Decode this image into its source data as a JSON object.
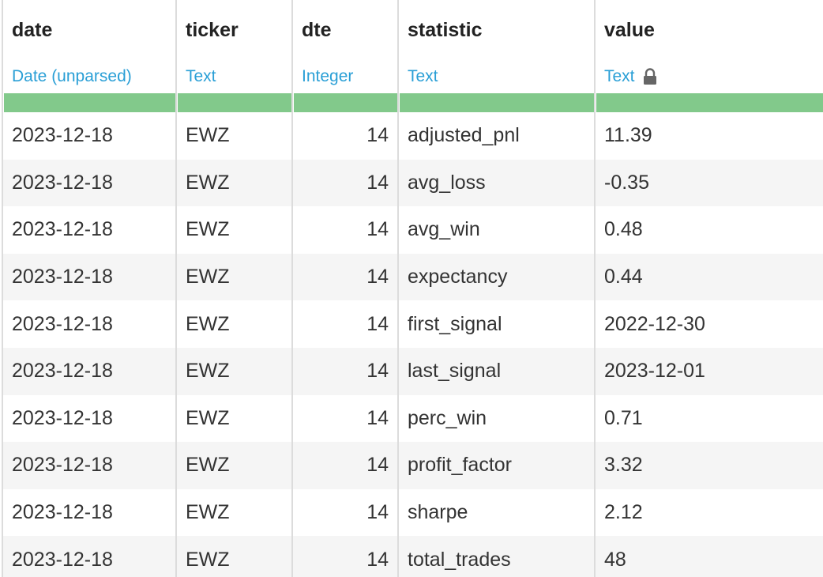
{
  "table": {
    "columns": [
      {
        "name": "date",
        "type": "Date (unparsed)"
      },
      {
        "name": "ticker",
        "type": "Text"
      },
      {
        "name": "dte",
        "type": "Integer"
      },
      {
        "name": "statistic",
        "type": "Text"
      },
      {
        "name": "value",
        "type": "Text"
      }
    ],
    "rows": [
      [
        "2023-12-18",
        "EWZ",
        14,
        "adjusted_pnl",
        "11.39"
      ],
      [
        "2023-12-18",
        "EWZ",
        14,
        "avg_loss",
        "-0.35"
      ],
      [
        "2023-12-18",
        "EWZ",
        14,
        "avg_win",
        "0.48"
      ],
      [
        "2023-12-18",
        "EWZ",
        14,
        "expectancy",
        "0.44"
      ],
      [
        "2023-12-18",
        "EWZ",
        14,
        "first_signal",
        "2022-12-30"
      ],
      [
        "2023-12-18",
        "EWZ",
        14,
        "last_signal",
        "2023-12-01"
      ],
      [
        "2023-12-18",
        "EWZ",
        14,
        "perc_win",
        "0.71"
      ],
      [
        "2023-12-18",
        "EWZ",
        14,
        "profit_factor",
        "3.32"
      ],
      [
        "2023-12-18",
        "EWZ",
        14,
        "sharpe",
        "2.12"
      ],
      [
        "2023-12-18",
        "EWZ",
        14,
        "total_trades",
        "48"
      ]
    ]
  }
}
